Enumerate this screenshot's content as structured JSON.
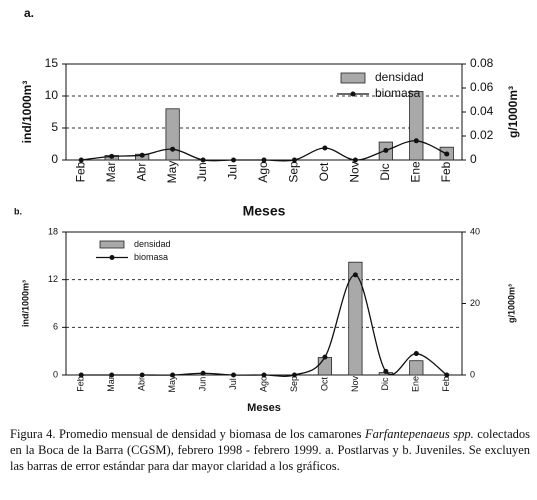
{
  "chart_data": [
    {
      "type": "bar",
      "panel": "a.",
      "categories": [
        "Feb",
        "Mar",
        "Abr",
        "May",
        "Jun",
        "Jul",
        "Ago",
        "Sep",
        "Oct",
        "Nov",
        "Dic",
        "Ene",
        "Feb"
      ],
      "series": [
        {
          "name": "densidad",
          "color": "#a9a9a9",
          "values": [
            0,
            0.7,
            0.9,
            8.0,
            0,
            0,
            0,
            0,
            0,
            0,
            2.8,
            10.7,
            2.0
          ]
        },
        {
          "name": "biomasa",
          "color": "#111111",
          "axis": "y2",
          "values": [
            0,
            0.003,
            0.004,
            0.009,
            0,
            0,
            0,
            0,
            0.01,
            0,
            0.008,
            0.016,
            0.005
          ]
        }
      ],
      "ylim": [
        0,
        15
      ],
      "yticks": [
        0,
        5,
        10,
        15
      ],
      "y2lim": [
        0,
        0.08
      ],
      "y2ticks": [
        0,
        0.02,
        0.04,
        0.06,
        0.08
      ],
      "y_label": "ind/1000m³",
      "y2_label": "g/1000m³",
      "x_label": "Meses",
      "grid": true,
      "legend": "upper right"
    },
    {
      "type": "bar",
      "panel": "b.",
      "categories": [
        "Feb",
        "Mar",
        "Abr",
        "May",
        "Jun",
        "Jul",
        "Ago",
        "Sep",
        "Oct",
        "Nov",
        "Dic",
        "Ene",
        "Feb"
      ],
      "series": [
        {
          "name": "densidad",
          "color": "#a9a9a9",
          "values": [
            0,
            0,
            0,
            0,
            0,
            0,
            0,
            0,
            2.2,
            14.2,
            0.3,
            1.8,
            0
          ]
        },
        {
          "name": "biomasa",
          "color": "#111111",
          "axis": "y2",
          "values": [
            0,
            0,
            0,
            0,
            0.5,
            0,
            0,
            0,
            5,
            28,
            1,
            6,
            0
          ]
        }
      ],
      "ylim": [
        0,
        18
      ],
      "yticks": [
        0,
        6,
        12,
        18
      ],
      "y2lim": [
        0,
        40
      ],
      "y2ticks": [
        0,
        20,
        40
      ],
      "y_label": "ind/1000m³",
      "y2_label": "g/1000m³",
      "x_label": "Meses",
      "grid": true,
      "legend": "upper left"
    }
  ],
  "caption": [
    "Figura 4.  Promedio mensual de densidad y biomasa de los camarones ",
    "Farfantepenaeus spp.",
    " colectados en la Boca de la Barra (CGSM), febrero 1998 - febrero 1999. a. Postlarvas y b. Juveniles. Se excluyen las barras de error estándar para dar mayor claridad a los gráficos."
  ]
}
